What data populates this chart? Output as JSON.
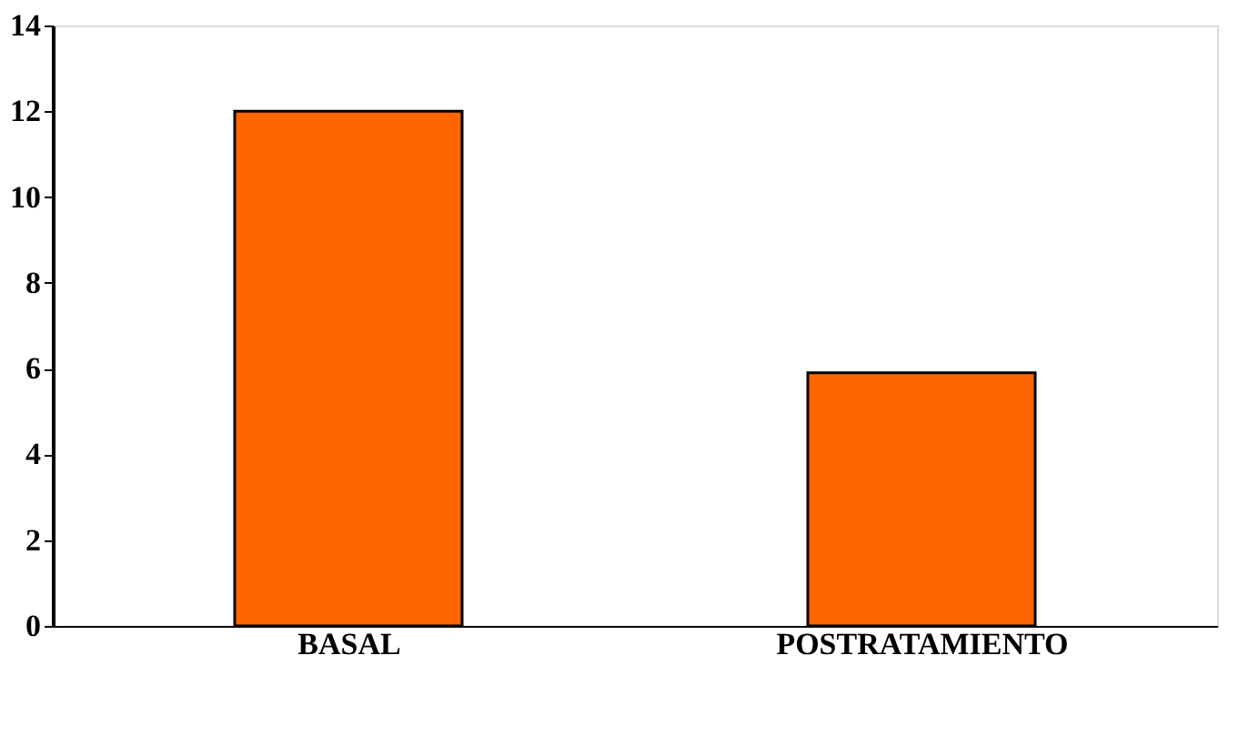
{
  "chart_data": {
    "type": "bar",
    "categories": [
      "BASAL",
      "POSTRATAMIENTO"
    ],
    "values": [
      12,
      5.9
    ],
    "color": "#ff6600",
    "ylim": [
      0,
      14
    ],
    "yticks": [
      0,
      2,
      4,
      6,
      8,
      10,
      12,
      14
    ],
    "grid": false
  }
}
